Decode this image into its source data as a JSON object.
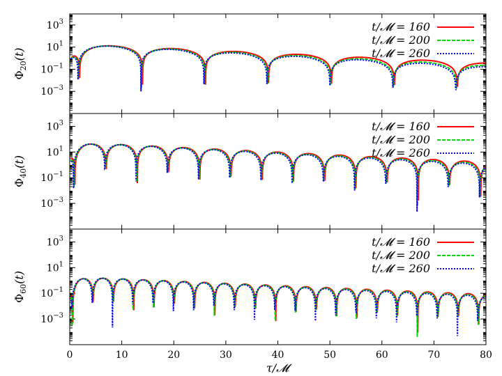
{
  "colors": {
    "t160": "#ff0000",
    "t200": "#00d800",
    "t260": "#0000ff",
    "axis": "#000000"
  },
  "chart_data": {
    "type": "line",
    "scale": "log-y",
    "title": "",
    "xlabel": "τ/𝓜",
    "xlim": [
      0,
      80
    ],
    "ylim": [
      1e-05,
      10000
    ],
    "xticks": [
      "0",
      "10",
      "20",
      "30",
      "40",
      "50",
      "60",
      "70",
      "80"
    ],
    "yticks": [
      {
        "value": 1000,
        "base": "10",
        "exp": "3"
      },
      {
        "value": 10,
        "base": "10",
        "exp": "1"
      },
      {
        "value": 0.1,
        "base": "10",
        "exp": "−1"
      },
      {
        "value": 0.001,
        "base": "10",
        "exp": "−3"
      }
    ],
    "panels": [
      {
        "ylabel_main": "Φ",
        "ylabel_sub": "20",
        "ylabel_tail": "(t)",
        "series": [
          {
            "name": "t/𝓜 = 160",
            "style": "solid",
            "amp": 20,
            "decay": 0.05,
            "floor": 0.0,
            "period": 12.1,
            "phase": 1.9,
            "rise": 2.3
          },
          {
            "name": "t/𝓜 = 200",
            "style": "dashed",
            "amp": 20,
            "decay": 0.056,
            "floor": 0.0,
            "period": 12.1,
            "phase": 1.7,
            "rise": 2.3
          },
          {
            "name": "t/𝓜 = 260",
            "style": "dotted",
            "amp": 20,
            "decay": 0.06,
            "floor": 0.0,
            "period": 12.1,
            "phase": 1.6,
            "rise": 2.3
          }
        ]
      },
      {
        "ylabel_main": "Φ",
        "ylabel_sub": "40",
        "ylabel_tail": "(t)",
        "series": [
          {
            "name": "t/𝓜 = 160",
            "style": "solid",
            "amp": 60,
            "decay": 0.045,
            "floor": 0.0,
            "period": 6.0,
            "phase": 1.0,
            "rise": 2.2
          },
          {
            "name": "t/𝓜 = 200",
            "style": "dashed",
            "amp": 60,
            "decay": 0.048,
            "floor": 0.0,
            "period": 6.0,
            "phase": 0.85,
            "rise": 2.2
          },
          {
            "name": "t/𝓜 = 260",
            "style": "dotted",
            "amp": 60,
            "decay": 0.05,
            "floor": 0.0,
            "period": 6.0,
            "phase": 0.75,
            "rise": 2.2
          }
        ]
      },
      {
        "ylabel_main": "Φ",
        "ylabel_sub": "60",
        "ylabel_tail": "(t)",
        "series": [
          {
            "name": "t/𝓜 = 160",
            "style": "solid",
            "amp": 2,
            "decay": 0.04,
            "floor": 0.0,
            "period": 3.9,
            "phase": 0.6,
            "rise": 1.8
          },
          {
            "name": "t/𝓜 = 200",
            "style": "dashed",
            "amp": 2,
            "decay": 0.042,
            "floor": 0.0,
            "period": 3.9,
            "phase": 0.5,
            "rise": 1.8
          },
          {
            "name": "t/𝓜 = 260",
            "style": "dotted",
            "amp": 2,
            "decay": 0.044,
            "floor": 0.0,
            "period": 3.9,
            "phase": 0.42,
            "rise": 1.8
          }
        ]
      }
    ]
  }
}
